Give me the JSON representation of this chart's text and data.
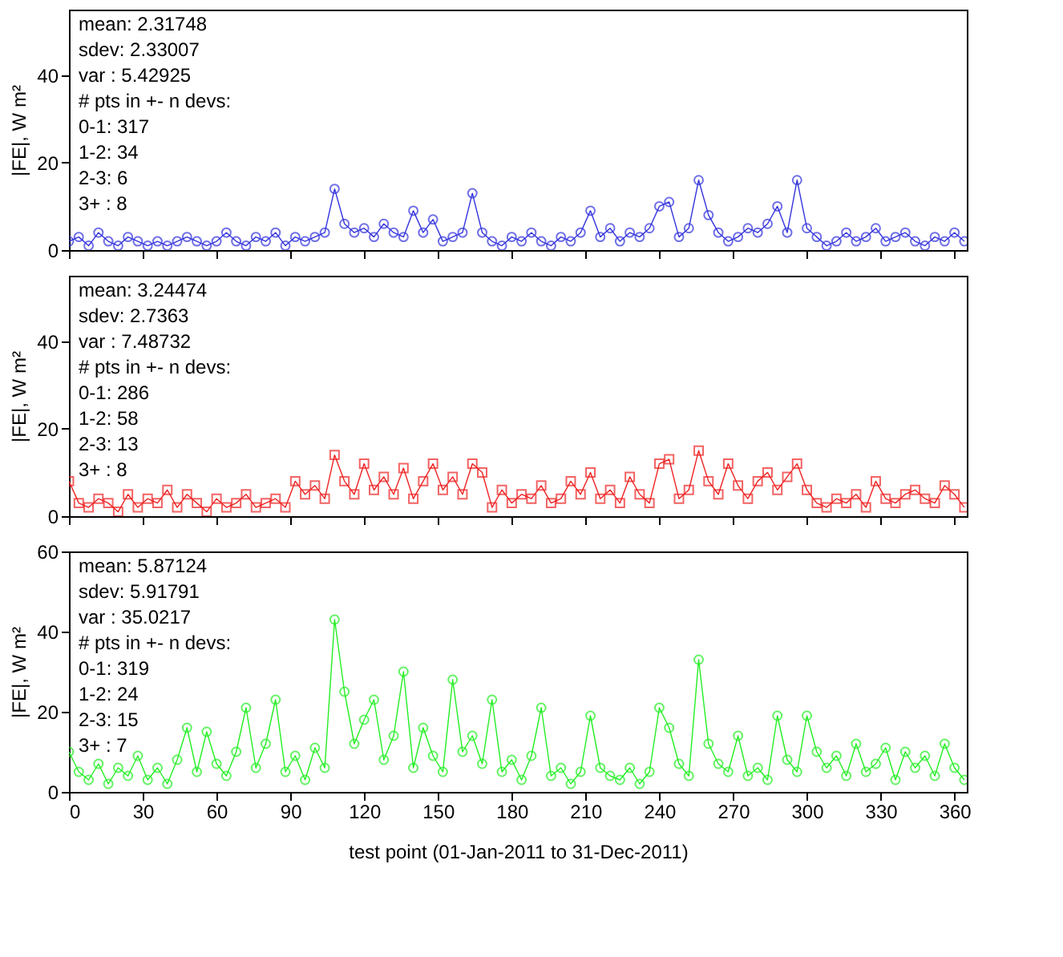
{
  "chart_data": [
    {
      "type": "line",
      "marker": "circle",
      "ylabel": "|FE|, W m²",
      "xlim": [
        0,
        365
      ],
      "xticks": [
        0,
        30,
        60,
        90,
        120,
        150,
        180,
        210,
        240,
        270,
        300,
        330,
        360
      ],
      "ylim": [
        0,
        55
      ],
      "yticks": [
        0,
        20,
        40
      ],
      "tick_labels": "y",
      "grid": false,
      "annotations": [
        "mean: 2.31748",
        "sdev: 2.33007",
        "var : 5.42925",
        "# pts in +- n devs:",
        "0-1: 317",
        "1-2: 34",
        "2-3: 6",
        "3+ : 8"
      ],
      "x": [
        0,
        4,
        8,
        12,
        16,
        20,
        24,
        28,
        32,
        36,
        40,
        44,
        48,
        52,
        56,
        60,
        64,
        68,
        72,
        76,
        80,
        84,
        88,
        92,
        96,
        100,
        104,
        108,
        112,
        116,
        120,
        124,
        128,
        132,
        136,
        140,
        144,
        148,
        152,
        156,
        160,
        164,
        168,
        172,
        176,
        180,
        184,
        188,
        192,
        196,
        200,
        204,
        208,
        212,
        216,
        220,
        224,
        228,
        232,
        236,
        240,
        244,
        248,
        252,
        256,
        260,
        264,
        268,
        272,
        276,
        280,
        284,
        288,
        292,
        296,
        300,
        304,
        308,
        312,
        316,
        320,
        324,
        328,
        332,
        336,
        340,
        344,
        348,
        352,
        356,
        360,
        364
      ],
      "series": [
        {
          "color": "#3333dd",
          "values": [
            2,
            3,
            1,
            4,
            2,
            1,
            3,
            2,
            1,
            2,
            1,
            2,
            3,
            2,
            1,
            2,
            4,
            2,
            1,
            3,
            2,
            4,
            1,
            3,
            2,
            3,
            4,
            14,
            6,
            4,
            5,
            3,
            6,
            4,
            3,
            9,
            4,
            7,
            2,
            3,
            4,
            13,
            4,
            2,
            1,
            3,
            2,
            4,
            2,
            1,
            3,
            2,
            4,
            9,
            3,
            5,
            2,
            4,
            3,
            5,
            10,
            11,
            3,
            5,
            16,
            8,
            4,
            2,
            3,
            5,
            4,
            6,
            10,
            4,
            16,
            5,
            3,
            1,
            2,
            4,
            2,
            3,
            5,
            2,
            3,
            4,
            2,
            1,
            3,
            2,
            4,
            2
          ]
        }
      ]
    },
    {
      "type": "line",
      "marker": "square",
      "ylabel": "|FE|, W m²",
      "xlim": [
        0,
        365
      ],
      "xticks": [
        0,
        30,
        60,
        90,
        120,
        150,
        180,
        210,
        240,
        270,
        300,
        330,
        360
      ],
      "ylim": [
        0,
        55
      ],
      "yticks": [
        0,
        20,
        40
      ],
      "tick_labels": "y",
      "grid": false,
      "annotations": [
        "mean: 3.24474",
        "sdev: 2.7363",
        "var : 7.48732",
        "# pts in +- n devs:",
        "0-1: 286",
        "1-2: 58",
        "2-3: 13",
        "3+ : 8"
      ],
      "x": [
        0,
        4,
        8,
        12,
        16,
        20,
        24,
        28,
        32,
        36,
        40,
        44,
        48,
        52,
        56,
        60,
        64,
        68,
        72,
        76,
        80,
        84,
        88,
        92,
        96,
        100,
        104,
        108,
        112,
        116,
        120,
        124,
        128,
        132,
        136,
        140,
        144,
        148,
        152,
        156,
        160,
        164,
        168,
        172,
        176,
        180,
        184,
        188,
        192,
        196,
        200,
        204,
        208,
        212,
        216,
        220,
        224,
        228,
        232,
        236,
        240,
        244,
        248,
        252,
        256,
        260,
        264,
        268,
        272,
        276,
        280,
        284,
        288,
        292,
        296,
        300,
        304,
        308,
        312,
        316,
        320,
        324,
        328,
        332,
        336,
        340,
        344,
        348,
        352,
        356,
        360,
        364
      ],
      "series": [
        {
          "color": "#ee2222",
          "values": [
            8,
            3,
            2,
            4,
            3,
            1,
            5,
            2,
            4,
            3,
            6,
            2,
            5,
            3,
            1,
            4,
            2,
            3,
            5,
            2,
            3,
            4,
            2,
            8,
            5,
            7,
            4,
            14,
            8,
            5,
            12,
            6,
            9,
            5,
            11,
            4,
            8,
            12,
            6,
            9,
            5,
            12,
            10,
            2,
            6,
            3,
            5,
            4,
            7,
            3,
            4,
            8,
            5,
            10,
            4,
            6,
            3,
            9,
            5,
            3,
            12,
            13,
            4,
            6,
            15,
            8,
            5,
            12,
            7,
            4,
            8,
            10,
            6,
            9,
            12,
            6,
            3,
            2,
            4,
            3,
            5,
            2,
            8,
            4,
            3,
            5,
            6,
            4,
            3,
            7,
            5,
            2
          ]
        }
      ]
    },
    {
      "type": "line",
      "marker": "circle",
      "ylabel": "|FE|, W m²",
      "xlabel": "test point (01-Jan-2011 to 31-Dec-2011)",
      "xlim": [
        0,
        365
      ],
      "xticks": [
        0,
        30,
        60,
        90,
        120,
        150,
        180,
        210,
        240,
        270,
        300,
        330,
        360
      ],
      "ylim": [
        0,
        60
      ],
      "yticks": [
        0,
        20,
        40,
        60
      ],
      "grid": false,
      "annotations": [
        "mean: 5.87124",
        "sdev: 5.91791",
        "var : 35.0217",
        "# pts in +- n devs:",
        "0-1: 319",
        "1-2: 24",
        "2-3: 15",
        "3+ : 7"
      ],
      "x": [
        0,
        4,
        8,
        12,
        16,
        20,
        24,
        28,
        32,
        36,
        40,
        44,
        48,
        52,
        56,
        60,
        64,
        68,
        72,
        76,
        80,
        84,
        88,
        92,
        96,
        100,
        104,
        108,
        112,
        116,
        120,
        124,
        128,
        132,
        136,
        140,
        144,
        148,
        152,
        156,
        160,
        164,
        168,
        172,
        176,
        180,
        184,
        188,
        192,
        196,
        200,
        204,
        208,
        212,
        216,
        220,
        224,
        228,
        232,
        236,
        240,
        244,
        248,
        252,
        256,
        260,
        264,
        268,
        272,
        276,
        280,
        284,
        288,
        292,
        296,
        300,
        304,
        308,
        312,
        316,
        320,
        324,
        328,
        332,
        336,
        340,
        344,
        348,
        352,
        356,
        360,
        364
      ],
      "series": [
        {
          "color": "#22ee22",
          "values": [
            10,
            5,
            3,
            7,
            2,
            6,
            4,
            9,
            3,
            6,
            2,
            8,
            16,
            5,
            15,
            7,
            4,
            10,
            21,
            6,
            12,
            23,
            5,
            9,
            3,
            11,
            6,
            43,
            25,
            12,
            18,
            23,
            8,
            14,
            30,
            6,
            16,
            9,
            5,
            28,
            10,
            14,
            7,
            23,
            5,
            8,
            3,
            9,
            21,
            4,
            6,
            2,
            5,
            19,
            6,
            4,
            3,
            6,
            2,
            5,
            21,
            16,
            7,
            4,
            33,
            12,
            7,
            5,
            14,
            4,
            6,
            3,
            19,
            8,
            5,
            19,
            10,
            6,
            9,
            4,
            12,
            5,
            7,
            11,
            3,
            10,
            6,
            9,
            4,
            12,
            6,
            3
          ]
        }
      ]
    }
  ]
}
